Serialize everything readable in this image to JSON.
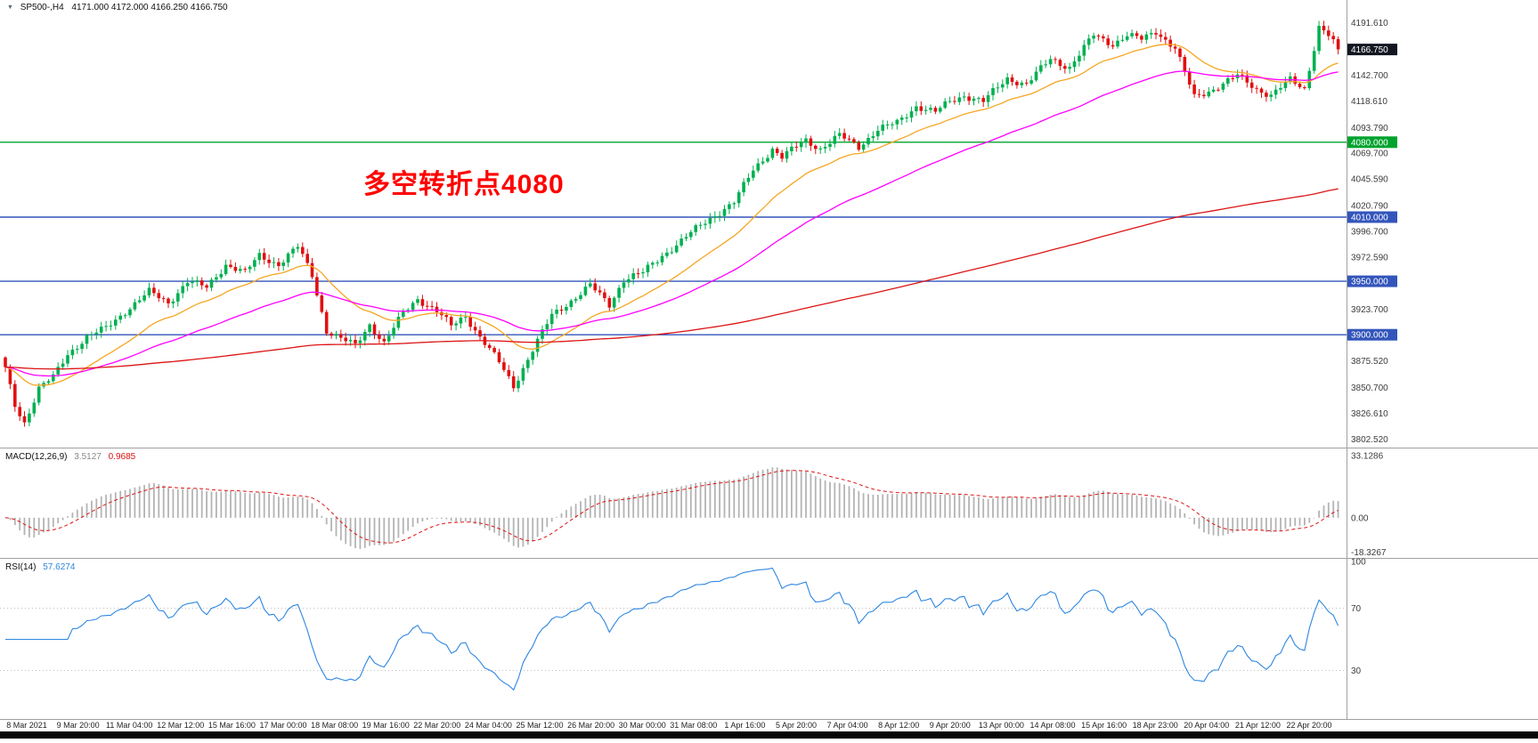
{
  "header": {
    "window_marker": "▼",
    "symbol": "SP500-,H4",
    "ohlc": "4171.000 4172.000 4166.250 4166.750"
  },
  "colors": {
    "up": "#00B050",
    "down": "#E01010",
    "ma_fast": "#F5A623",
    "ma_mid": "#FF00FF",
    "ma_slow": "#DC1414",
    "level_green": "#00A32E",
    "level_blue": "#3355BB",
    "current_price_bg": "#131722",
    "macd_hist": "#B4B4B4",
    "macd_signal": "#DC1414",
    "rsi_line": "#2E86E0",
    "annotation": "#FF0000",
    "axis_text": "#3C3C3C",
    "time_text": "#222222",
    "separator": "#A0A0A0",
    "macd_value_main": "#8A8A8A"
  },
  "chart_data": {
    "type": "candlestick",
    "symbol": "SP500-",
    "timeframe": "H4",
    "title": "SP500-,H4 4171.000 4172.000 4166.250 4166.750",
    "bar_count": 279,
    "noise_amplitude": 4,
    "current_price": {
      "value": 4166.75,
      "label": "4166.750"
    },
    "price_range": [
      3797,
      4203
    ],
    "close_anchors": [
      [
        0,
        3868
      ],
      [
        2,
        3834
      ],
      [
        4,
        3818
      ],
      [
        7,
        3850
      ],
      [
        10,
        3860
      ],
      [
        13,
        3882
      ],
      [
        17,
        3898
      ],
      [
        21,
        3906
      ],
      [
        25,
        3922
      ],
      [
        30,
        3940
      ],
      [
        34,
        3930
      ],
      [
        38,
        3950
      ],
      [
        42,
        3944
      ],
      [
        46,
        3966
      ],
      [
        50,
        3958
      ],
      [
        53,
        3974
      ],
      [
        57,
        3966
      ],
      [
        61,
        3982
      ],
      [
        64,
        3956
      ],
      [
        67,
        3904
      ],
      [
        70,
        3896
      ],
      [
        73,
        3890
      ],
      [
        76,
        3910
      ],
      [
        79,
        3892
      ],
      [
        83,
        3920
      ],
      [
        86,
        3934
      ],
      [
        90,
        3922
      ],
      [
        93,
        3908
      ],
      [
        96,
        3918
      ],
      [
        99,
        3898
      ],
      [
        103,
        3874
      ],
      [
        106,
        3852
      ],
      [
        110,
        3886
      ],
      [
        114,
        3918
      ],
      [
        118,
        3932
      ],
      [
        122,
        3946
      ],
      [
        126,
        3928
      ],
      [
        129,
        3952
      ],
      [
        133,
        3958
      ],
      [
        137,
        3974
      ],
      [
        141,
        3988
      ],
      [
        145,
        4002
      ],
      [
        148,
        4012
      ],
      [
        152,
        4024
      ],
      [
        156,
        4054
      ],
      [
        160,
        4074
      ],
      [
        162,
        4066
      ],
      [
        167,
        4082
      ],
      [
        170,
        4074
      ],
      [
        174,
        4086
      ],
      [
        178,
        4076
      ],
      [
        182,
        4092
      ],
      [
        186,
        4098
      ],
      [
        190,
        4114
      ],
      [
        194,
        4108
      ],
      [
        197,
        4118
      ],
      [
        200,
        4124
      ],
      [
        204,
        4118
      ],
      [
        209,
        4140
      ],
      [
        213,
        4134
      ],
      [
        218,
        4158
      ],
      [
        222,
        4150
      ],
      [
        227,
        4180
      ],
      [
        231,
        4172
      ],
      [
        234,
        4180
      ],
      [
        237,
        4176
      ],
      [
        240,
        4184
      ],
      [
        244,
        4168
      ],
      [
        248,
        4122
      ],
      [
        252,
        4130
      ],
      [
        257,
        4142
      ],
      [
        261,
        4130
      ],
      [
        264,
        4124
      ],
      [
        268,
        4138
      ],
      [
        271,
        4130
      ],
      [
        274,
        4188
      ],
      [
        276,
        4180
      ],
      [
        278,
        4166.75
      ]
    ],
    "price_ticks": [
      "4191.610",
      "4142.700",
      "4118.610",
      "4093.790",
      "4069.700",
      "4045.590",
      "4020.790",
      "3996.700",
      "3972.590",
      "3923.700",
      "3875.520",
      "3850.700",
      "3826.610",
      "3802.520"
    ],
    "levels": [
      {
        "value": 4080,
        "label": "4080.000",
        "color_key": "level_green"
      },
      {
        "value": 4010,
        "label": "4010.000",
        "color_key": "level_blue"
      },
      {
        "value": 3950,
        "label": "3950.000",
        "color_key": "level_blue"
      },
      {
        "value": 3900,
        "label": "3900.000",
        "color_key": "level_blue"
      }
    ],
    "moving_averages": [
      {
        "name": "ma-fast",
        "period": 21,
        "color_key": "ma_fast"
      },
      {
        "name": "ma-mid",
        "period": 55,
        "color_key": "ma_mid"
      },
      {
        "name": "ma-slow",
        "period": 300,
        "color_key": "ma_slow"
      }
    ],
    "indicators": {
      "macd": {
        "label": "MACD(12,26,9)",
        "value_main": "3.5127",
        "value_signal": "0.9685",
        "params": [
          12,
          26,
          9
        ],
        "axis": [
          {
            "v": 33.1286,
            "label": "33.1286"
          },
          {
            "v": 0,
            "label": "0.00"
          },
          {
            "v": -18.3267,
            "label": "-18.3267"
          }
        ],
        "range": [
          -20,
          35
        ]
      },
      "rsi": {
        "label": "RSI(14)",
        "value": "57.6274",
        "period": 14,
        "levels": [
          70,
          30
        ],
        "axis": [
          {
            "v": 100,
            "label": "100"
          },
          {
            "v": 70,
            "label": "70"
          },
          {
            "v": 30,
            "label": "30"
          }
        ],
        "range": [
          0,
          100
        ]
      }
    },
    "annotation": {
      "text": "多空转折点4080",
      "color": "#FF0000"
    },
    "time_labels": [
      "8 Mar 2021",
      "9 Mar 20:00",
      "11 Mar 04:00",
      "12 Mar 12:00",
      "15 Mar 16:00",
      "17 Mar 00:00",
      "18 Mar 08:00",
      "19 Mar 16:00",
      "22 Mar 20:00",
      "24 Mar 04:00",
      "25 Mar 12:00",
      "26 Mar 20:00",
      "30 Mar 00:00",
      "31 Mar 08:00",
      "1 Apr 16:00",
      "5 Apr 20:00",
      "7 Apr 04:00",
      "8 Apr 12:00",
      "9 Apr 20:00",
      "13 Apr 00:00",
      "14 Apr 08:00",
      "15 Apr 16:00",
      "18 Apr 23:00",
      "20 Apr 04:00",
      "21 Apr 12:00",
      "22 Apr 20:00"
    ]
  }
}
